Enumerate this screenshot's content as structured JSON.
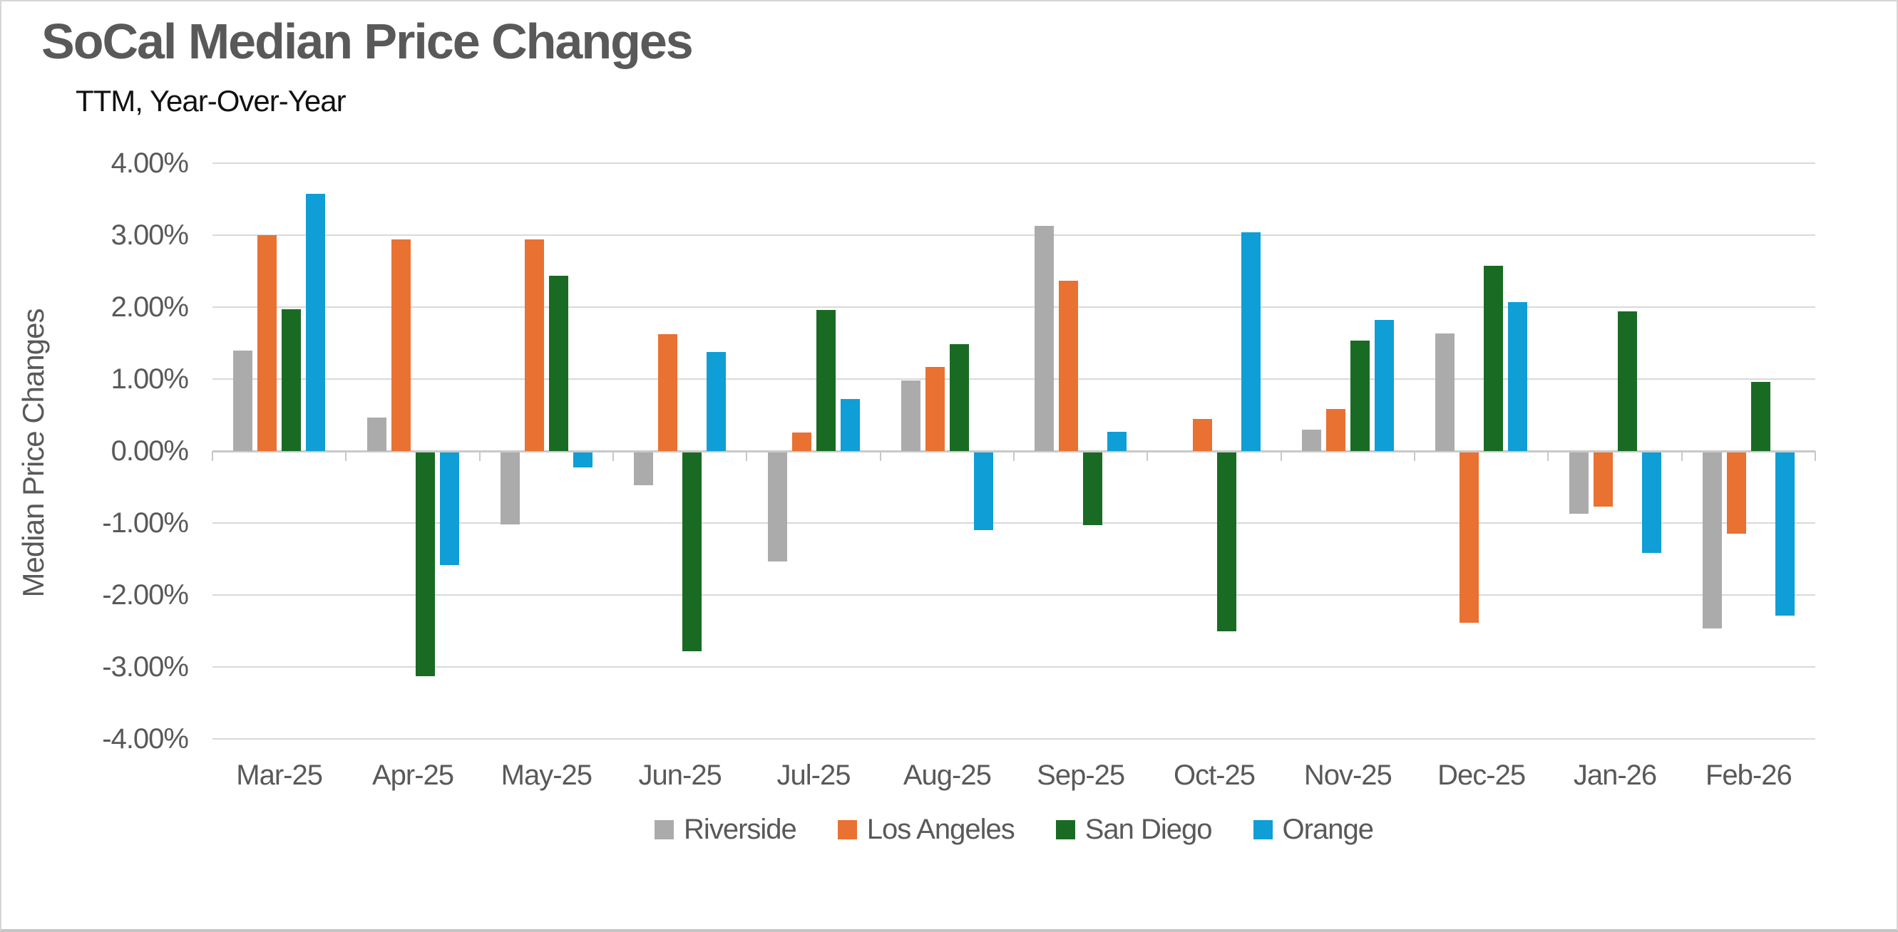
{
  "chart": {
    "title": "SoCal Median Price Changes",
    "subtitle": "TTM, Year-Over-Year",
    "y_axis_title": "Median Price Changes"
  },
  "chart_data": {
    "type": "bar",
    "title": "SoCal Median Price Changes",
    "subtitle": "TTM, Year-Over-Year",
    "xlabel": "",
    "ylabel": "Median Price Changes",
    "ylim": [
      -4,
      4
    ],
    "y_tick_step": 1,
    "y_tick_labels": [
      "4.00%",
      "3.00%",
      "2.00%",
      "1.00%",
      "0.00%",
      "-1.00%",
      "-2.00%",
      "-3.00%",
      "-4.00%"
    ],
    "grid": true,
    "legend_position": "bottom",
    "categories": [
      "Mar-25",
      "Apr-25",
      "May-25",
      "Jun-25",
      "Jul-25",
      "Aug-25",
      "Sep-25",
      "Oct-25",
      "Nov-25",
      "Dec-25",
      "Jan-26",
      "Feb-26"
    ],
    "series": [
      {
        "name": "Riverside",
        "color": "#ABABAB",
        "values": [
          1.4,
          0.47,
          -1.0,
          -0.46,
          -1.52,
          0.98,
          3.13,
          0.0,
          0.3,
          1.63,
          -0.86,
          -2.45
        ]
      },
      {
        "name": "Los Angeles",
        "color": "#E97132",
        "values": [
          3.0,
          2.94,
          2.94,
          1.62,
          0.26,
          1.17,
          2.37,
          0.45,
          0.58,
          -2.37,
          -0.76,
          -1.13
        ]
      },
      {
        "name": "San Diego",
        "color": "#196B24",
        "values": [
          1.97,
          -3.11,
          2.44,
          -2.77,
          1.96,
          1.49,
          -1.01,
          -2.49,
          1.53,
          2.57,
          1.94,
          0.96
        ]
      },
      {
        "name": "Orange",
        "color": "#0F9ED5",
        "values": [
          3.57,
          -1.57,
          -0.21,
          1.38,
          0.72,
          -1.08,
          0.27,
          3.04,
          1.82,
          2.07,
          -1.4,
          -2.27
        ]
      }
    ],
    "colors": {
      "title_text": "#595959",
      "axis_text": "#595959",
      "gridline": "#D9D9D9",
      "baseline": "#C9C9C9"
    }
  }
}
